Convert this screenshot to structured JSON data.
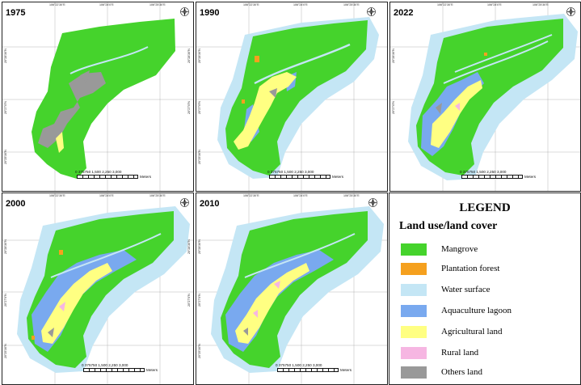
{
  "panels": [
    {
      "id": "p1975",
      "year": "1975"
    },
    {
      "id": "p1990",
      "year": "1990"
    },
    {
      "id": "p2022",
      "year": "2022"
    },
    {
      "id": "p2000",
      "year": "2000"
    },
    {
      "id": "p2010",
      "year": "2010"
    }
  ],
  "coords": {
    "top": [
      "106°22'30\"E",
      "106°24'0\"E",
      "106°25'30\"E"
    ],
    "left": [
      "20°28'30\"N",
      "20°27'0\"N",
      "20°25'30\"N"
    ],
    "right": [
      "20°28'30\"N",
      "20°27'0\"N",
      "20°25'30\"N"
    ]
  },
  "scale": {
    "numbers": "0  375750   1,500   2,250   3,000",
    "unit": "Meters"
  },
  "scale_2022": {
    "numbers": "0  375750   1,500   2,250   3,000",
    "unit": "Meters"
  },
  "legend": {
    "title": "LEGEND",
    "subtitle": "Land use/land cover",
    "items": [
      {
        "label": "Mangrove",
        "color": "#45d32c"
      },
      {
        "label": "Plantation forest",
        "color": "#f5a01e"
      },
      {
        "label": "Water surface",
        "color": "#c4e6f5"
      },
      {
        "label": "Aquaculture lagoon",
        "color": "#79a9ef"
      },
      {
        "label": "Agricultural land",
        "color": "#ffff82"
      },
      {
        "label": "Rural land",
        "color": "#f6b6e2"
      },
      {
        "label": "Others land",
        "color": "#999999"
      }
    ]
  },
  "colors": {
    "mangrove": "#45d32c",
    "plantation": "#f5a01e",
    "water": "#c4e6f5",
    "aquaculture": "#79a9ef",
    "agri": "#ffff82",
    "rural": "#f6b6e2",
    "others": "#999999"
  },
  "icons": {
    "north": "north-arrow-icon"
  }
}
